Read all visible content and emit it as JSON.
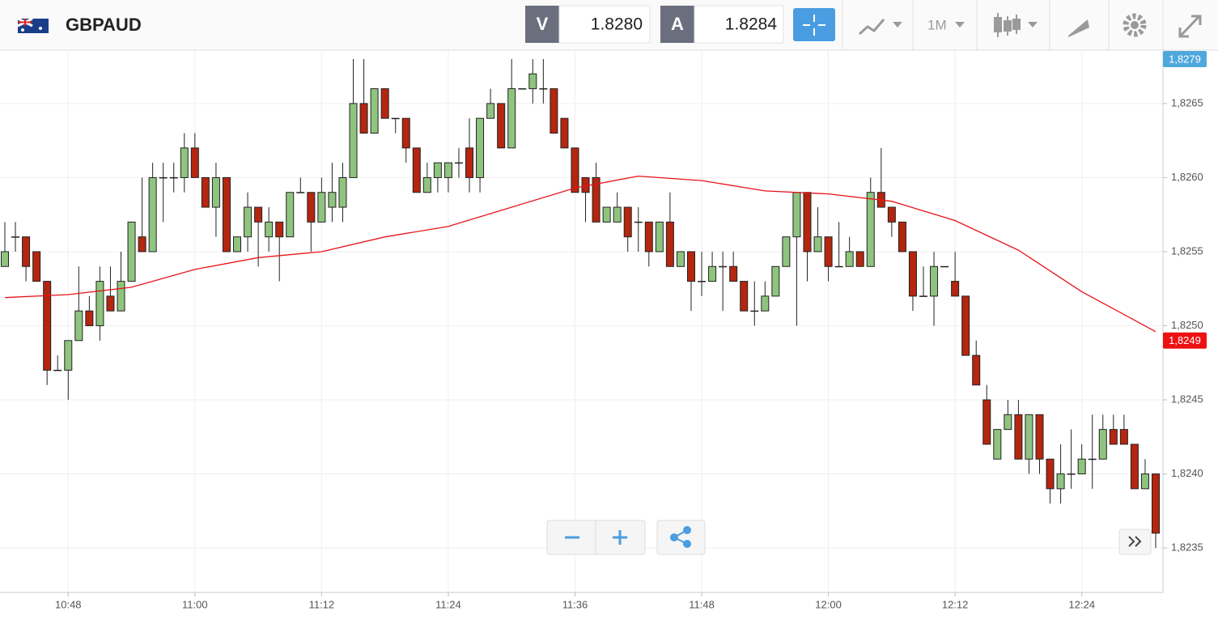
{
  "toolbar": {
    "symbol": "GBPAUD",
    "bid_label": "V",
    "bid": "1.8280",
    "ask_label": "A",
    "ask": "1.8284",
    "timeframe": "1M"
  },
  "chart_data": {
    "type": "candlestick",
    "x": [
      "10:42",
      "10:43",
      "10:44",
      "10:45",
      "10:46",
      "10:47",
      "10:48",
      "10:49",
      "10:50",
      "10:51",
      "10:52",
      "10:53",
      "10:54",
      "10:55",
      "10:56",
      "10:57",
      "10:58",
      "10:59",
      "11:00",
      "11:01",
      "11:02",
      "11:03",
      "11:04",
      "11:05",
      "11:06",
      "11:07",
      "11:08",
      "11:09",
      "11:10",
      "11:11",
      "11:12",
      "11:13",
      "11:14",
      "11:15",
      "11:16",
      "11:17",
      "11:18",
      "11:19",
      "11:20",
      "11:21",
      "11:22",
      "11:23",
      "11:24",
      "11:25",
      "11:26",
      "11:27",
      "11:28",
      "11:29",
      "11:30",
      "11:31",
      "11:32",
      "11:33",
      "11:34",
      "11:35",
      "11:36",
      "11:37",
      "11:38",
      "11:39",
      "11:40",
      "11:41",
      "11:42",
      "11:43",
      "11:44",
      "11:45",
      "11:46",
      "11:47",
      "11:48",
      "11:49",
      "11:50",
      "11:51",
      "11:52",
      "11:53",
      "11:54",
      "11:55",
      "11:56",
      "11:57",
      "11:58",
      "11:59",
      "12:00",
      "12:01",
      "12:02",
      "12:03",
      "12:04",
      "12:05",
      "12:06",
      "12:07",
      "12:08",
      "12:09",
      "12:10",
      "12:11",
      "12:12",
      "12:13",
      "12:14",
      "12:15",
      "12:16",
      "12:17",
      "12:18",
      "12:19",
      "12:20",
      "12:21",
      "12:22",
      "12:23",
      "12:24",
      "12:25",
      "12:26",
      "12:27",
      "12:28",
      "12:29",
      "12:30",
      "12:31"
    ],
    "open": [
      1.8254,
      1.8256,
      1.8256,
      1.8255,
      1.8253,
      1.8247,
      1.8247,
      1.8249,
      1.8251,
      1.825,
      1.8252,
      1.8251,
      1.8253,
      1.8256,
      1.8255,
      1.826,
      1.826,
      1.826,
      1.8262,
      1.826,
      1.8258,
      1.826,
      1.8255,
      1.8256,
      1.8258,
      1.8256,
      1.8257,
      1.8256,
      1.8259,
      1.8259,
      1.8257,
      1.8258,
      1.8258,
      1.826,
      1.8265,
      1.8263,
      1.8266,
      1.8264,
      1.8264,
      1.8262,
      1.8259,
      1.826,
      1.826,
      1.8261,
      1.8262,
      1.826,
      1.8264,
      1.8265,
      1.8262,
      1.8266,
      1.8266,
      1.8266,
      1.8266,
      1.8264,
      1.8262,
      1.826,
      1.826,
      1.8257,
      1.8257,
      1.8258,
      1.8257,
      1.8257,
      1.8255,
      1.8257,
      1.8254,
      1.8255,
      1.8253,
      1.8253,
      1.8254,
      1.8254,
      1.8253,
      1.8251,
      1.8251,
      1.8252,
      1.8254,
      1.8256,
      1.8259,
      1.8255,
      1.8256,
      1.8254,
      1.8254,
      1.8255,
      1.8254,
      1.8259,
      1.8258,
      1.8257,
      1.8255,
      1.8252,
      1.8252,
      1.8254,
      1.8253,
      1.8252,
      1.8248,
      1.8245,
      1.8241,
      1.8243,
      1.8244,
      1.8241,
      1.8244,
      1.8241,
      1.8239,
      1.824,
      1.824,
      1.8241,
      1.8241,
      1.8243,
      1.8243,
      1.8242,
      1.8239,
      1.824
    ],
    "high": [
      1.8257,
      1.8257,
      1.8256,
      1.8255,
      1.8253,
      1.8248,
      1.8249,
      1.8254,
      1.8252,
      1.8254,
      1.8254,
      1.8255,
      1.8257,
      1.826,
      1.8261,
      1.8261,
      1.8261,
      1.8263,
      1.8263,
      1.826,
      1.8261,
      1.826,
      1.8256,
      1.8259,
      1.8258,
      1.8258,
      1.8257,
      1.8259,
      1.826,
      1.8259,
      1.826,
      1.8261,
      1.8261,
      1.8268,
      1.8268,
      1.8266,
      1.8266,
      1.8264,
      1.8264,
      1.8262,
      1.8261,
      1.8261,
      1.8261,
      1.8262,
      1.8264,
      1.8264,
      1.8266,
      1.8265,
      1.8268,
      1.8266,
      1.8268,
      1.8268,
      1.8266,
      1.8264,
      1.8262,
      1.826,
      1.8261,
      1.8258,
      1.8259,
      1.8258,
      1.8258,
      1.8257,
      1.8257,
      1.8259,
      1.8255,
      1.8255,
      1.8255,
      1.8255,
      1.8255,
      1.8255,
      1.8253,
      1.8253,
      1.8253,
      1.8254,
      1.8256,
      1.8259,
      1.8259,
      1.8258,
      1.8256,
      1.8257,
      1.8256,
      1.8255,
      1.826,
      1.8262,
      1.8258,
      1.8257,
      1.8255,
      1.8254,
      1.8255,
      1.8254,
      1.8255,
      1.8252,
      1.8249,
      1.8246,
      1.8243,
      1.8245,
      1.8245,
      1.8244,
      1.8244,
      1.8241,
      1.8242,
      1.8243,
      1.8242,
      1.8244,
      1.8244,
      1.8244,
      1.8244,
      1.8242,
      1.8241,
      1.824
    ],
    "low": [
      1.8254,
      1.8255,
      1.8253,
      1.8253,
      1.8246,
      1.8247,
      1.8245,
      1.8249,
      1.825,
      1.8249,
      1.8251,
      1.8251,
      1.8253,
      1.8255,
      1.8255,
      1.8257,
      1.8259,
      1.8259,
      1.826,
      1.8258,
      1.8256,
      1.8255,
      1.8255,
      1.8255,
      1.8254,
      1.8255,
      1.8253,
      1.8256,
      1.8259,
      1.8255,
      1.8257,
      1.8257,
      1.8257,
      1.826,
      1.8263,
      1.8263,
      1.8264,
      1.8263,
      1.8261,
      1.8259,
      1.8259,
      1.8259,
      1.8259,
      1.826,
      1.8259,
      1.8259,
      1.8264,
      1.8262,
      1.8262,
      1.8266,
      1.8265,
      1.8265,
      1.8263,
      1.8262,
      1.8259,
      1.8257,
      1.8257,
      1.8257,
      1.8257,
      1.8255,
      1.8255,
      1.8254,
      1.8255,
      1.8254,
      1.8254,
      1.8251,
      1.8252,
      1.8253,
      1.8251,
      1.8253,
      1.8251,
      1.825,
      1.8251,
      1.8252,
      1.8254,
      1.825,
      1.8253,
      1.8255,
      1.8253,
      1.8254,
      1.8254,
      1.8254,
      1.8254,
      1.8258,
      1.8256,
      1.8255,
      1.8251,
      1.8252,
      1.825,
      1.8254,
      1.8252,
      1.8248,
      1.8246,
      1.8242,
      1.8241,
      1.8243,
      1.8241,
      1.824,
      1.824,
      1.8238,
      1.8238,
      1.8239,
      1.824,
      1.8239,
      1.8241,
      1.8242,
      1.8242,
      1.8239,
      1.8239,
      1.8235
    ],
    "close": [
      1.8255,
      1.8256,
      1.8254,
      1.8253,
      1.8247,
      1.8247,
      1.8249,
      1.8251,
      1.825,
      1.8253,
      1.8251,
      1.8253,
      1.8257,
      1.8255,
      1.826,
      1.826,
      1.826,
      1.8262,
      1.826,
      1.8258,
      1.826,
      1.8255,
      1.8256,
      1.8258,
      1.8257,
      1.8257,
      1.8256,
      1.8259,
      1.8259,
      1.8257,
      1.8259,
      1.8259,
      1.826,
      1.8265,
      1.8263,
      1.8266,
      1.8264,
      1.8264,
      1.8262,
      1.8259,
      1.826,
      1.8261,
      1.8261,
      1.8261,
      1.826,
      1.8264,
      1.8265,
      1.8262,
      1.8266,
      1.8266,
      1.8267,
      1.8266,
      1.8263,
      1.8262,
      1.8259,
      1.8259,
      1.8257,
      1.8258,
      1.8258,
      1.8256,
      1.8257,
      1.8255,
      1.8257,
      1.8254,
      1.8255,
      1.8253,
      1.8253,
      1.8254,
      1.8254,
      1.8253,
      1.8251,
      1.8251,
      1.8252,
      1.8254,
      1.8256,
      1.8259,
      1.8255,
      1.8256,
      1.8254,
      1.8254,
      1.8255,
      1.8254,
      1.8259,
      1.8258,
      1.8257,
      1.8255,
      1.8252,
      1.8252,
      1.8254,
      1.8254,
      1.8252,
      1.8248,
      1.8246,
      1.8242,
      1.8243,
      1.8244,
      1.8241,
      1.8244,
      1.8241,
      1.8239,
      1.824,
      1.824,
      1.8241,
      1.8241,
      1.8243,
      1.8242,
      1.8242,
      1.8239,
      1.824,
      1.8236
    ],
    "up_color": "#8fc47e",
    "down_color": "#b4260f",
    "moving_average": {
      "x": [
        "10:42",
        "10:48",
        "10:54",
        "11:00",
        "11:06",
        "11:12",
        "11:18",
        "11:24",
        "11:30",
        "11:36",
        "11:42",
        "11:48",
        "11:54",
        "12:00",
        "12:06",
        "12:12",
        "12:18",
        "12:24",
        "12:31"
      ],
      "values": [
        1.82519,
        1.82521,
        1.82526,
        1.82538,
        1.82546,
        1.8255,
        1.8256,
        1.82567,
        1.8258,
        1.82593,
        1.82601,
        1.82598,
        1.82591,
        1.82589,
        1.82584,
        1.82571,
        1.82551,
        1.82523,
        1.82496
      ],
      "color": "#e8141b"
    },
    "xlim": [
      "10:42",
      "12:31"
    ],
    "xticks": [
      "10:48",
      "11:00",
      "11:12",
      "11:24",
      "11:36",
      "11:48",
      "12:00",
      "12:12",
      "12:24"
    ],
    "ylim": [
      1.8232,
      1.82686
    ],
    "yticks": [
      {
        "value": 1.8235,
        "label": "1,8235"
      },
      {
        "value": 1.824,
        "label": "1,8240"
      },
      {
        "value": 1.8245,
        "label": "1,8245"
      },
      {
        "value": 1.825,
        "label": "1,8250"
      },
      {
        "value": 1.8255,
        "label": "1,8255"
      },
      {
        "value": 1.826,
        "label": "1,8260"
      },
      {
        "value": 1.8265,
        "label": "1,8265"
      }
    ],
    "grid": true,
    "price_badges": [
      {
        "value": 1.8279,
        "label": "1,8279",
        "color": "#4ea8dc"
      },
      {
        "value": 1.8249,
        "label": "1,8249",
        "color": "#ee1111"
      }
    ]
  }
}
